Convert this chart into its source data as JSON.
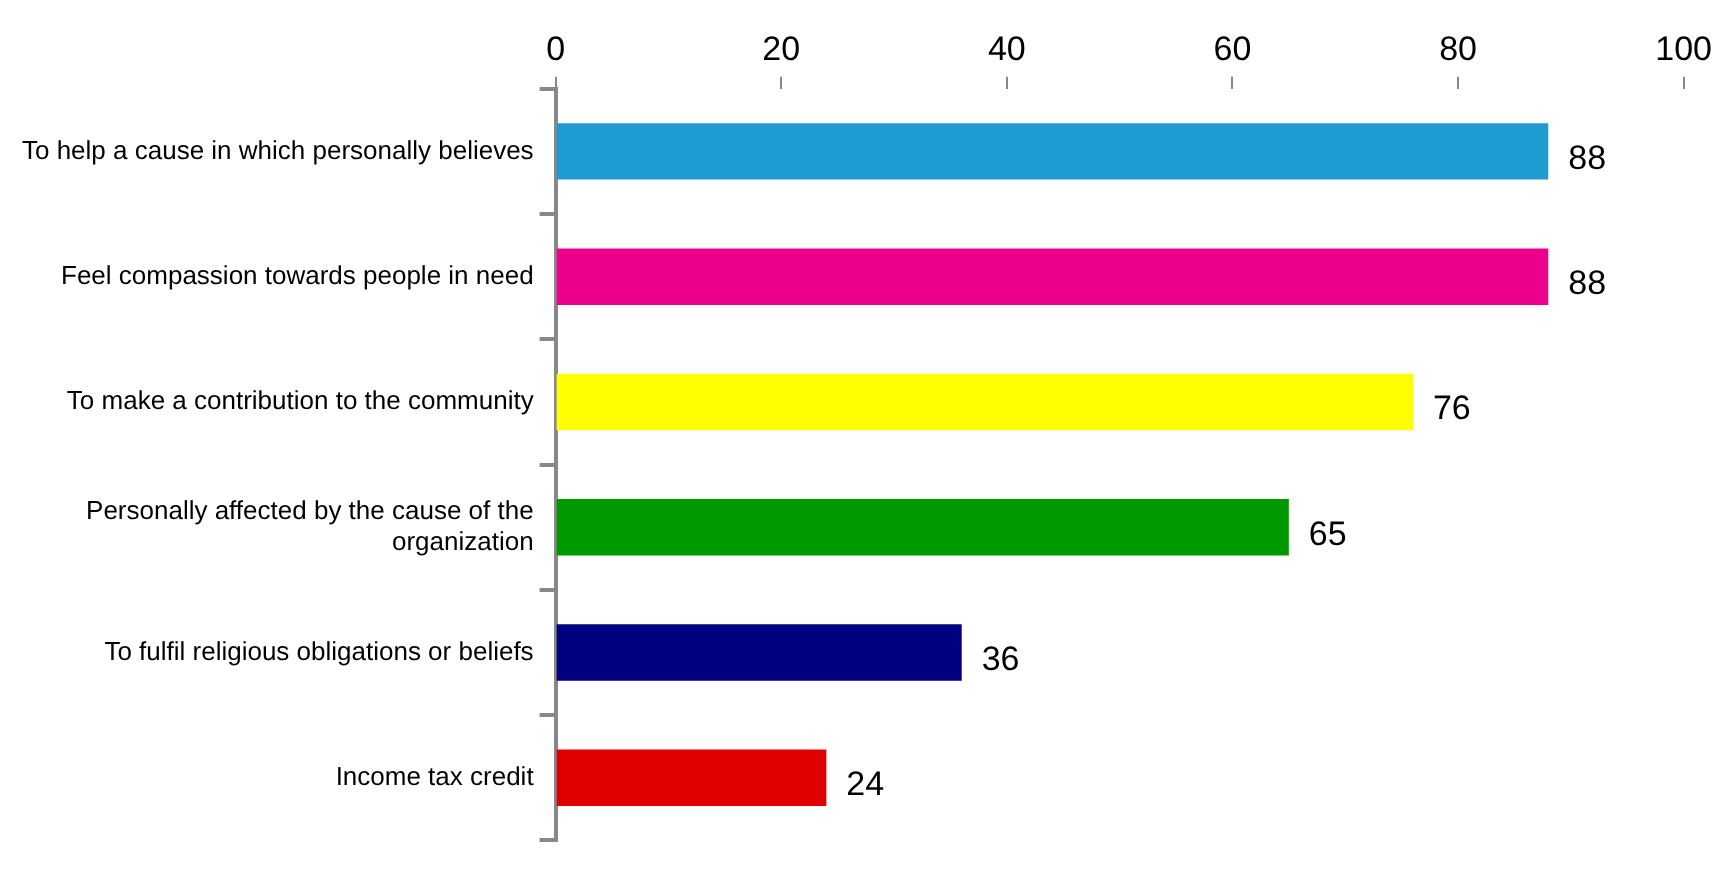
{
  "chart_data": {
    "type": "bar",
    "orientation": "horizontal",
    "categories": [
      "To help a cause in which personally believes",
      "Feel compassion towards people in need",
      "To make a contribution to the community",
      "Personally affected by the cause of the organization",
      "To fulfil religious obligations or beliefs",
      "Income tax credit"
    ],
    "values": [
      88,
      88,
      76,
      65,
      36,
      24
    ],
    "colors": [
      "#1e9bd0",
      "#ec008c",
      "#ffff00",
      "#009900",
      "#000080",
      "#e00000"
    ],
    "xlim": [
      0,
      100
    ],
    "xticks": [
      0,
      20,
      40,
      60,
      80,
      100
    ],
    "grid": false,
    "legend": false,
    "data_labels": true
  }
}
